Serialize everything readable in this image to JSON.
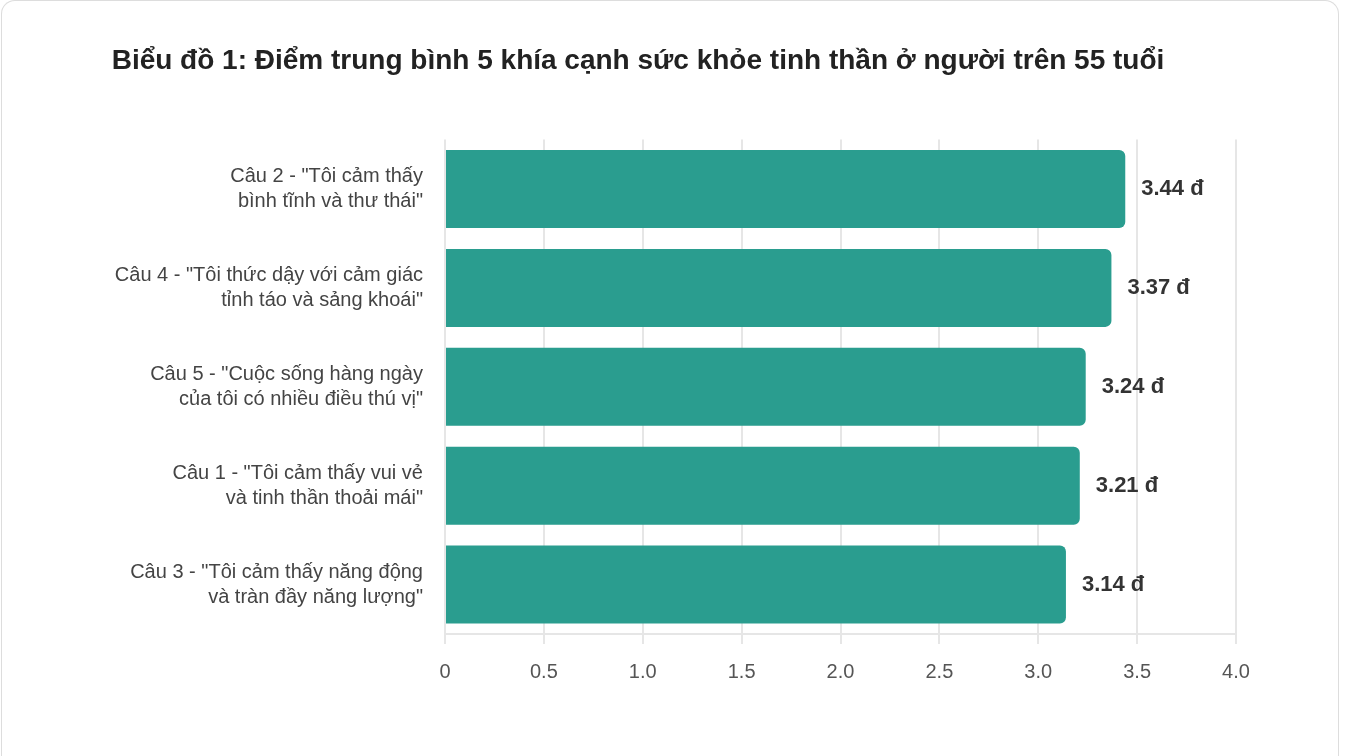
{
  "chart_data": {
    "type": "bar",
    "orientation": "horizontal",
    "title": "Biểu đồ 1: Điểm trung bình 5 khía cạnh sức khỏe tinh thần ở người trên 55 tuổi",
    "categories": [
      "Câu 2 - \"Tôi cảm thấy\nbình tĩnh và thư thái\"",
      "Câu 4 - \"Tôi thức dậy với cảm giác\ntỉnh táo và sảng khoái\"",
      "Câu 5 - \"Cuộc sống hàng ngày\ncủa tôi có nhiều điều thú vị\"",
      "Câu 1 - \"Tôi cảm thấy vui vẻ\nvà tinh thần thoải mái\"",
      "Câu 3 - \"Tôi cảm thấy năng động\nvà tràn đầy năng lượng\""
    ],
    "values": [
      3.44,
      3.37,
      3.24,
      3.21,
      3.14
    ],
    "value_labels": [
      "3.44 đ",
      "3.37 đ",
      "3.24 đ",
      "3.21 đ",
      "3.14 đ"
    ],
    "color": "#2a9d8f",
    "xlim": [
      0,
      4
    ],
    "xticks": [
      0,
      0.5,
      {
        "value": 1,
        "label": "1.0"
      },
      1.5,
      {
        "value": 2,
        "label": "2.0"
      },
      2.5,
      {
        "value": 3,
        "label": "3.0"
      },
      3.5,
      {
        "value": 4,
        "label": "4.0"
      }
    ],
    "grid": "x"
  }
}
